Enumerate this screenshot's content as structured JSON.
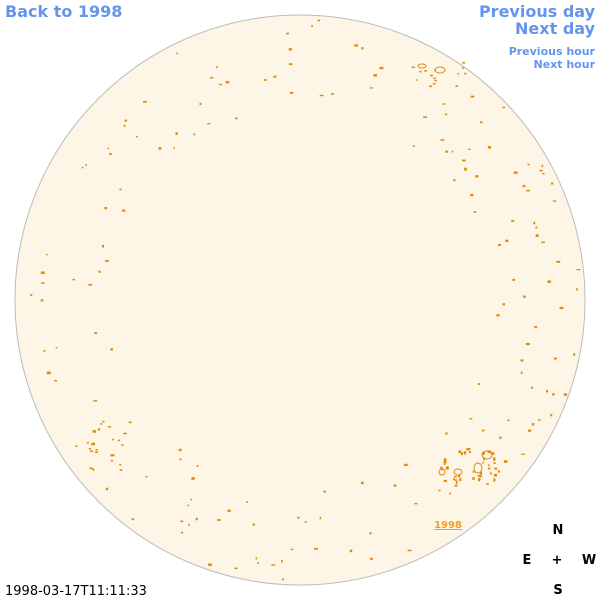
{
  "nav": {
    "back": "Back to 1998",
    "previous_day": "Previous day",
    "next_day": "Next day",
    "previous_hour": "Previous hour",
    "next_hour": "Next hour"
  },
  "region_label": "1998",
  "timestamp": "1998-03-17T11:11:33",
  "compass": {
    "north": "N",
    "east": "E",
    "center": "+",
    "west": "W",
    "south": "S"
  }
}
